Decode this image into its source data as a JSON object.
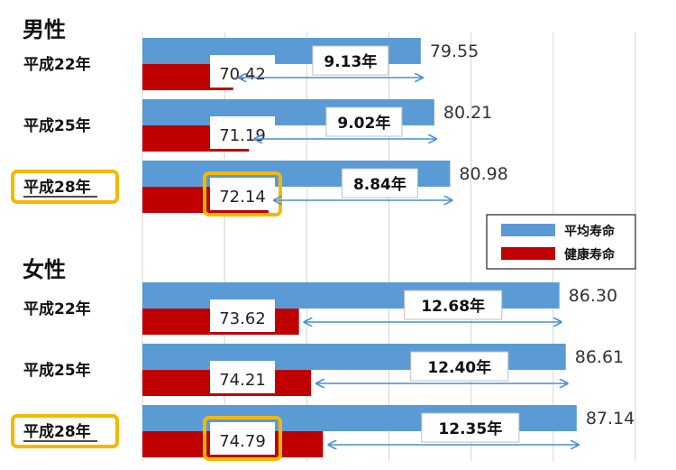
{
  "chart_data": {
    "type": "bar",
    "orientation": "horizontal",
    "xlim": [
      66,
      90
    ],
    "grid": true,
    "legend": {
      "position": "right-middle",
      "entries": [
        {
          "name": "平均寿命",
          "color": "#5b9bd5"
        },
        {
          "name": "健康寿命",
          "color": "#c00000"
        }
      ]
    },
    "groups": [
      {
        "label": "男性",
        "rows": [
          {
            "year": "平成22年",
            "avg": 79.55,
            "avg_label": "79.55",
            "healthy": 70.42,
            "healthy_label": "70.42",
            "gap": "9.13年",
            "highlight": false
          },
          {
            "year": "平成25年",
            "avg": 80.21,
            "avg_label": "80.21",
            "healthy": 71.19,
            "healthy_label": "71.19",
            "gap": "9.02年",
            "highlight": false
          },
          {
            "year": "平成28年",
            "avg": 80.98,
            "avg_label": "80.98",
            "healthy": 72.14,
            "healthy_label": "72.14",
            "gap": "8.84年",
            "highlight": true
          }
        ]
      },
      {
        "label": "女性",
        "rows": [
          {
            "year": "平成22年",
            "avg": 86.3,
            "avg_label": "86.30",
            "healthy": 73.62,
            "healthy_label": "73.62",
            "gap": "12.68年",
            "highlight": false
          },
          {
            "year": "平成25年",
            "avg": 86.61,
            "avg_label": "86.61",
            "healthy": 74.21,
            "healthy_label": "74.21",
            "gap": "12.40年",
            "highlight": false
          },
          {
            "year": "平成28年",
            "avg": 87.14,
            "avg_label": "87.14",
            "healthy": 74.79,
            "healthy_label": "74.79",
            "gap": "12.35年",
            "highlight": true
          }
        ]
      }
    ],
    "colors": {
      "avg": "#5b9bd5",
      "healthy": "#c00000",
      "highlight": "#f5b800",
      "arrow": "#4a8fd6"
    }
  }
}
